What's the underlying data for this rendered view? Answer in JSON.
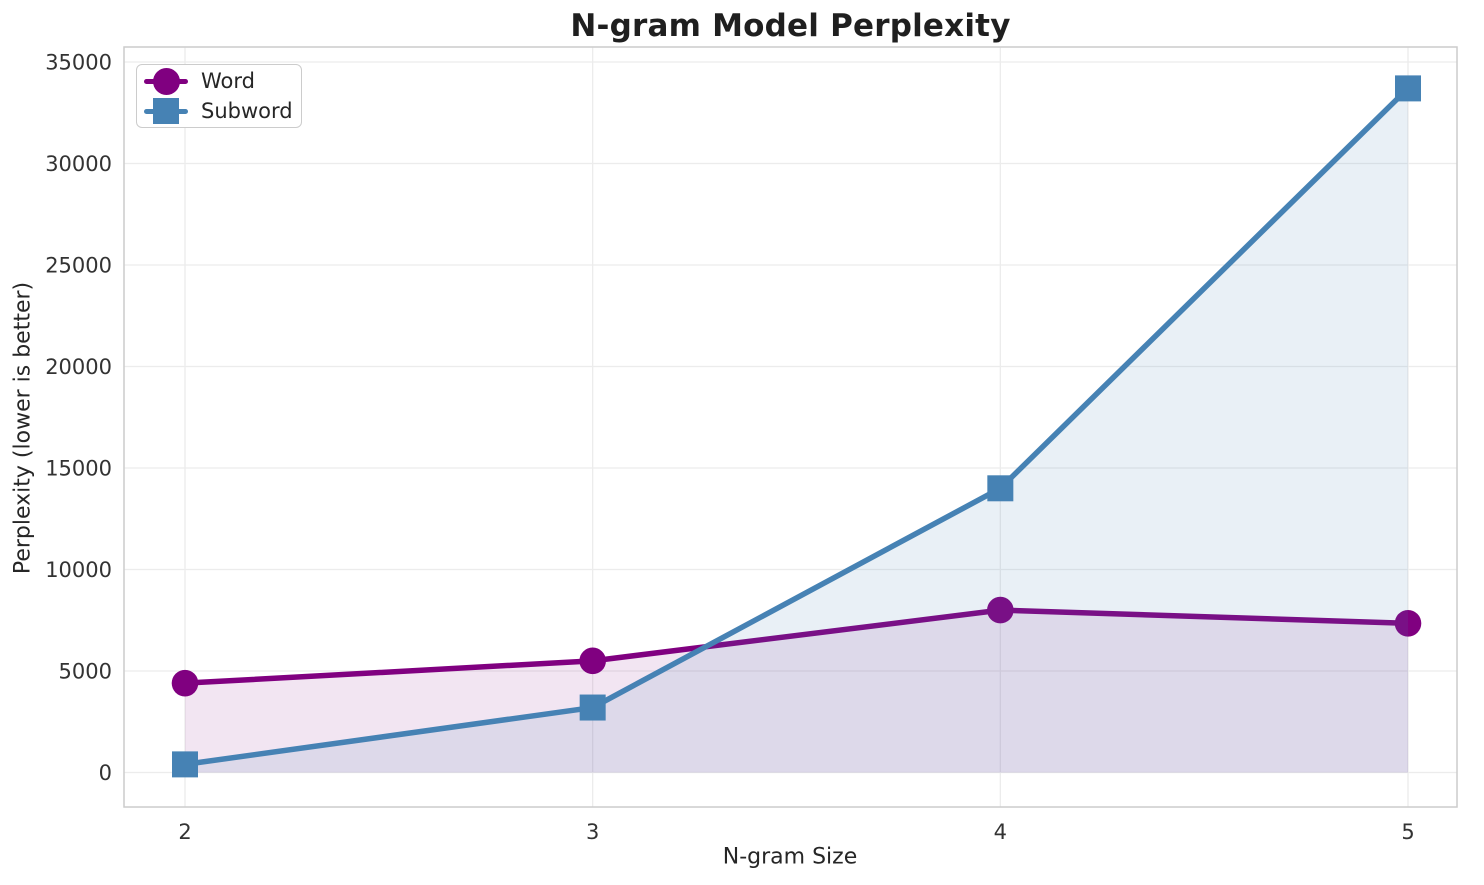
{
  "chart_data": {
    "type": "line",
    "title": "N-gram Model Perplexity",
    "xlabel": "N-gram Size",
    "ylabel": "Perplexity (lower is better)",
    "x": [
      2,
      3,
      4,
      5
    ],
    "xtick_labels": [
      "2",
      "3",
      "4",
      "5"
    ],
    "yticks": [
      0,
      5000,
      10000,
      15000,
      20000,
      25000,
      30000,
      35000
    ],
    "ylim": [
      0,
      35000
    ],
    "grid": true,
    "legend_position": "upper left",
    "area_fill": true,
    "series": [
      {
        "name": "Word",
        "color": "#800080",
        "marker": "circle",
        "fill_opacity": 0.1,
        "values": [
          4400,
          5500,
          8000,
          7350
        ]
      },
      {
        "name": "Subword",
        "color": "#4682B4",
        "marker": "square",
        "fill_opacity": 0.12,
        "values": [
          400,
          3200,
          14000,
          33700
        ]
      }
    ]
  },
  "colors": {
    "grid": "#ececec",
    "spine": "#cccccc",
    "text": "#262626",
    "tick_text": "#333333",
    "background": "#ffffff"
  }
}
